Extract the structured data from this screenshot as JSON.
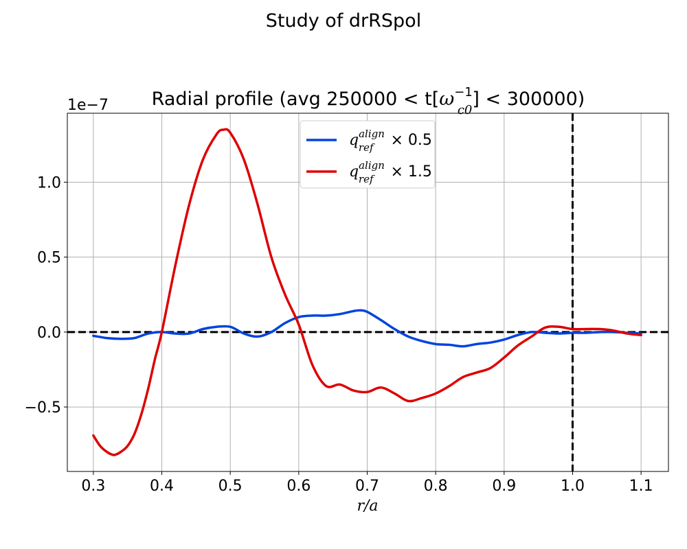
{
  "chart_data": {
    "type": "line",
    "suptitle": "Study of drRSpol",
    "title": {
      "prefix": "Radial profile (avg 250000 < t[",
      "symbol": "ω",
      "sup": "−1",
      "sub": "c0",
      "suffix": "] < 300000)"
    },
    "xlabel": "r/a",
    "ylabel": "",
    "offset_text": "1e−7",
    "y_scale": 1e-07,
    "xlim": [
      0.262,
      1.14
    ],
    "ylim": [
      -9.3e-08,
      1.46e-07
    ],
    "x_ticks": [
      0.3,
      0.4,
      0.5,
      0.6,
      0.7,
      0.8,
      0.9,
      1.0,
      1.1
    ],
    "x_tick_labels": [
      "0.3",
      "0.4",
      "0.5",
      "0.6",
      "0.7",
      "0.8",
      "0.9",
      "1.0",
      "1.1"
    ],
    "y_ticks": [
      -5e-08,
      0.0,
      5e-08,
      1e-07
    ],
    "y_tick_labels": [
      "−0.5",
      "0.0",
      "0.5",
      "1.0"
    ],
    "grid": true,
    "legend_position": "upper-center",
    "reference_lines": [
      {
        "orientation": "horizontal",
        "value": 0.0,
        "style": "dashed",
        "color": "#000000"
      },
      {
        "orientation": "vertical",
        "value": 1.0,
        "style": "dashed",
        "color": "#000000"
      }
    ],
    "series": [
      {
        "name": "q_ref^align × 0.5",
        "label": {
          "base": "q",
          "sup": "align",
          "sub": "ref",
          "suffix": " × 0.5"
        },
        "color": "#0044dd",
        "x": [
          0.3,
          0.32,
          0.34,
          0.36,
          0.38,
          0.4,
          0.42,
          0.44,
          0.46,
          0.48,
          0.5,
          0.52,
          0.54,
          0.56,
          0.58,
          0.6,
          0.62,
          0.64,
          0.66,
          0.68,
          0.69,
          0.7,
          0.72,
          0.74,
          0.76,
          0.78,
          0.8,
          0.82,
          0.84,
          0.86,
          0.88,
          0.9,
          0.92,
          0.94,
          0.96,
          0.98,
          1.0,
          1.02,
          1.04,
          1.06,
          1.08,
          1.1
        ],
        "y": [
          -2.5e-09,
          -4e-09,
          -4.5e-09,
          -4e-09,
          -1e-09,
          0.0,
          -1e-09,
          -1e-09,
          2e-09,
          3.5e-09,
          3.5e-09,
          -1e-09,
          -3e-09,
          0.0,
          6e-09,
          1e-08,
          1.1e-08,
          1.1e-08,
          1.2e-08,
          1.4e-08,
          1.45e-08,
          1.35e-08,
          8e-09,
          2e-09,
          -3e-09,
          -6e-09,
          -8e-09,
          -8.5e-09,
          -9.5e-09,
          -8e-09,
          -7e-09,
          -5e-09,
          -2e-09,
          0.0,
          -5e-10,
          -1e-09,
          -5e-10,
          -5e-10,
          0.0,
          0.0,
          -5e-10,
          -1e-09
        ]
      },
      {
        "name": "q_ref^align × 1.5",
        "label": {
          "base": "q",
          "sup": "align",
          "sub": "ref",
          "suffix": " × 1.5"
        },
        "color": "#dd0000",
        "x": [
          0.3,
          0.31,
          0.32,
          0.33,
          0.34,
          0.35,
          0.36,
          0.37,
          0.38,
          0.39,
          0.4,
          0.42,
          0.44,
          0.46,
          0.48,
          0.49,
          0.5,
          0.52,
          0.54,
          0.56,
          0.58,
          0.6,
          0.62,
          0.64,
          0.66,
          0.68,
          0.7,
          0.72,
          0.74,
          0.76,
          0.78,
          0.8,
          0.82,
          0.84,
          0.86,
          0.88,
          0.9,
          0.92,
          0.94,
          0.96,
          0.98,
          1.0,
          1.02,
          1.04,
          1.06,
          1.08,
          1.1
        ],
        "y": [
          -6.9e-08,
          -7.6e-08,
          -8e-08,
          -8.2e-08,
          -8e-08,
          -7.6e-08,
          -6.8e-08,
          -5.5e-08,
          -3.8e-08,
          -1.8e-08,
          0.0,
          4.5e-08,
          8.5e-08,
          1.15e-07,
          1.32e-07,
          1.35e-07,
          1.33e-07,
          1.15e-07,
          8.5e-08,
          5e-08,
          2.5e-08,
          5e-09,
          -2.2e-08,
          -3.6e-08,
          -3.5e-08,
          -3.9e-08,
          -4e-08,
          -3.7e-08,
          -4.1e-08,
          -4.6e-08,
          -4.4e-08,
          -4.1e-08,
          -3.6e-08,
          -3e-08,
          -2.7e-08,
          -2.4e-08,
          -1.7e-08,
          -9e-09,
          -3e-09,
          3e-09,
          3.5e-09,
          2e-09,
          2e-09,
          2e-09,
          1e-09,
          -1e-09,
          -2e-09
        ]
      }
    ]
  }
}
